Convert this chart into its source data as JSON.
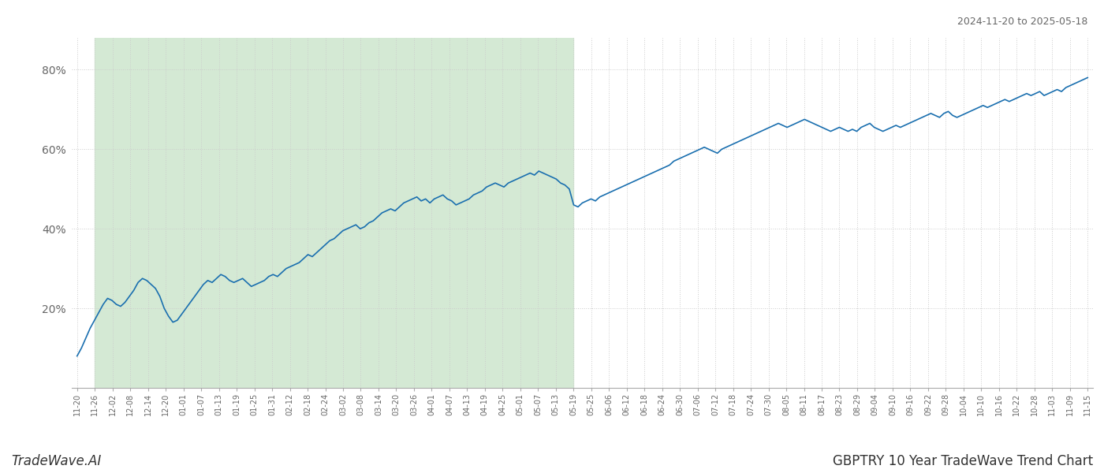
{
  "title_top_right": "2024-11-20 to 2025-05-18",
  "title_bottom_left": "TradeWave.AI",
  "title_bottom_right": "GBPTRY 10 Year TradeWave Trend Chart",
  "line_color": "#1a6faf",
  "line_width": 1.2,
  "bg_color": "#ffffff",
  "shaded_bg_color": "#d4e9d4",
  "grid_color": "#cccccc",
  "grid_linestyle": ":",
  "x_labels": [
    "11-20",
    "11-26",
    "12-02",
    "12-08",
    "12-14",
    "12-20",
    "01-01",
    "01-07",
    "01-13",
    "01-19",
    "01-25",
    "01-31",
    "02-12",
    "02-18",
    "02-24",
    "03-02",
    "03-08",
    "03-14",
    "03-20",
    "03-26",
    "04-01",
    "04-07",
    "04-13",
    "04-19",
    "04-25",
    "05-01",
    "05-07",
    "05-13",
    "05-19",
    "05-25",
    "06-06",
    "06-12",
    "06-18",
    "06-24",
    "06-30",
    "07-06",
    "07-12",
    "07-18",
    "07-24",
    "07-30",
    "08-05",
    "08-11",
    "08-17",
    "08-23",
    "08-29",
    "09-04",
    "09-10",
    "09-16",
    "09-22",
    "09-28",
    "10-04",
    "10-10",
    "10-16",
    "10-22",
    "10-28",
    "11-03",
    "11-09",
    "11-15"
  ],
  "y_values": [
    8.0,
    10.0,
    12.5,
    15.0,
    17.0,
    19.0,
    21.0,
    22.5,
    22.0,
    21.0,
    20.5,
    21.5,
    23.0,
    24.5,
    26.5,
    27.5,
    27.0,
    26.0,
    25.0,
    23.0,
    20.0,
    18.0,
    16.5,
    17.0,
    18.5,
    20.0,
    21.5,
    23.0,
    24.5,
    26.0,
    27.0,
    26.5,
    27.5,
    28.5,
    28.0,
    27.0,
    26.5,
    27.0,
    27.5,
    26.5,
    25.5,
    26.0,
    26.5,
    27.0,
    28.0,
    28.5,
    28.0,
    29.0,
    30.0,
    30.5,
    31.0,
    31.5,
    32.5,
    33.5,
    33.0,
    34.0,
    35.0,
    36.0,
    37.0,
    37.5,
    38.5,
    39.5,
    40.0,
    40.5,
    41.0,
    40.0,
    40.5,
    41.5,
    42.0,
    43.0,
    44.0,
    44.5,
    45.0,
    44.5,
    45.5,
    46.5,
    47.0,
    47.5,
    48.0,
    47.0,
    47.5,
    46.5,
    47.5,
    48.0,
    48.5,
    47.5,
    47.0,
    46.0,
    46.5,
    47.0,
    47.5,
    48.5,
    49.0,
    49.5,
    50.5,
    51.0,
    51.5,
    51.0,
    50.5,
    51.5,
    52.0,
    52.5,
    53.0,
    53.5,
    54.0,
    53.5,
    54.5,
    54.0,
    53.5,
    53.0,
    52.5,
    51.5,
    51.0,
    50.0,
    46.0,
    45.5,
    46.5,
    47.0,
    47.5,
    47.0,
    48.0,
    48.5,
    49.0,
    49.5,
    50.0,
    50.5,
    51.0,
    51.5,
    52.0,
    52.5,
    53.0,
    53.5,
    54.0,
    54.5,
    55.0,
    55.5,
    56.0,
    57.0,
    57.5,
    58.0,
    58.5,
    59.0,
    59.5,
    60.0,
    60.5,
    60.0,
    59.5,
    59.0,
    60.0,
    60.5,
    61.0,
    61.5,
    62.0,
    62.5,
    63.0,
    63.5,
    64.0,
    64.5,
    65.0,
    65.5,
    66.0,
    66.5,
    66.0,
    65.5,
    66.0,
    66.5,
    67.0,
    67.5,
    67.0,
    66.5,
    66.0,
    65.5,
    65.0,
    64.5,
    65.0,
    65.5,
    65.0,
    64.5,
    65.0,
    64.5,
    65.5,
    66.0,
    66.5,
    65.5,
    65.0,
    64.5,
    65.0,
    65.5,
    66.0,
    65.5,
    66.0,
    66.5,
    67.0,
    67.5,
    68.0,
    68.5,
    69.0,
    68.5,
    68.0,
    69.0,
    69.5,
    68.5,
    68.0,
    68.5,
    69.0,
    69.5,
    70.0,
    70.5,
    71.0,
    70.5,
    71.0,
    71.5,
    72.0,
    72.5,
    72.0,
    72.5,
    73.0,
    73.5,
    74.0,
    73.5,
    74.0,
    74.5,
    73.5,
    74.0,
    74.5,
    75.0,
    74.5,
    75.5,
    76.0,
    76.5,
    77.0,
    77.5,
    78.0
  ],
  "shaded_label_start": "11-26",
  "shaded_label_end": "05-19",
  "ylim_min": 0,
  "ylim_max": 88
}
